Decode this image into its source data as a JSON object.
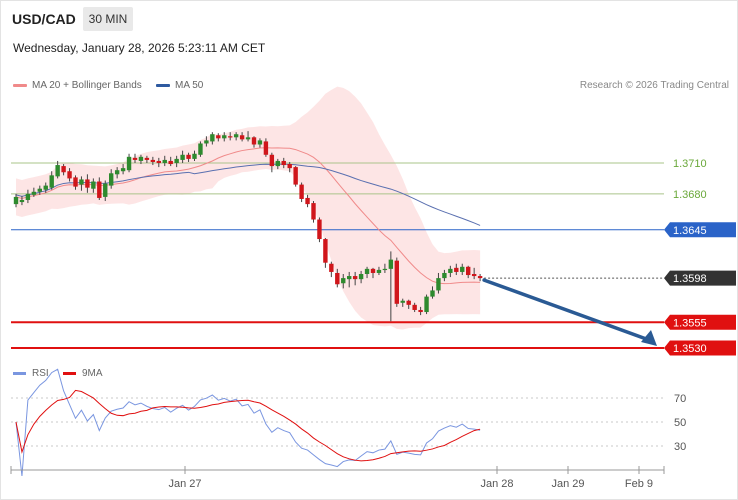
{
  "header": {
    "symbol": "USD/CAD",
    "timeframe": "30 MIN",
    "datetime": "Wednesday, January 28, 2026 5:23:11 AM CET",
    "credit": "Research © 2026 Trading Central"
  },
  "legend": {
    "ma20": "MA 20 + Bollinger Bands",
    "ma50": "MA 50",
    "rsi": "RSI",
    "ma9": "9MA"
  },
  "colors": {
    "bull": "#2e8a2e",
    "bear": "#d0161b",
    "ma20": "#f08a8a",
    "band": "#fde0e0",
    "ma50": "#5a70b0",
    "support": "#e01010",
    "resistance_green": "#aac48a",
    "blue_level": "#2a63c8",
    "current": "#333333",
    "arrow": "#2a5a94",
    "rsi": "#7a96e0",
    "rsi_ma": "#e01010"
  },
  "chart_data": {
    "type": "candlestick",
    "ylim": [
      1.351,
      1.38
    ],
    "x_ticks": [
      "Jan 27",
      "Jan 28",
      "Jan 29",
      "Feb 9"
    ],
    "levels": [
      {
        "value": 1.371,
        "label": "1.3710",
        "kind": "resistance"
      },
      {
        "value": 1.368,
        "label": "1.3680",
        "kind": "resistance"
      },
      {
        "value": 1.3645,
        "label": "1.3645",
        "kind": "pivot"
      },
      {
        "value": 1.3598,
        "label": "1.3598",
        "kind": "current"
      },
      {
        "value": 1.3555,
        "label": "1.3555",
        "kind": "support"
      },
      {
        "value": 1.353,
        "label": "1.3530",
        "kind": "support"
      }
    ],
    "candles": [
      [
        1.3677,
        1.367,
        1.368,
        1.3667
      ],
      [
        1.3674,
        1.3672,
        1.3678,
        1.3669
      ],
      [
        1.368,
        1.3674,
        1.3684,
        1.3671
      ],
      [
        1.3682,
        1.3679,
        1.3686,
        1.3677
      ],
      [
        1.3685,
        1.3682,
        1.3688,
        1.3679
      ],
      [
        1.3688,
        1.3684,
        1.3691,
        1.3681
      ],
      [
        1.3698,
        1.3686,
        1.3702,
        1.3684
      ],
      [
        1.3708,
        1.3697,
        1.3712,
        1.3695
      ],
      [
        1.3701,
        1.3707,
        1.3709,
        1.3698
      ],
      [
        1.3695,
        1.3702,
        1.3705,
        1.3692
      ],
      [
        1.3687,
        1.3696,
        1.3698,
        1.3684
      ],
      [
        1.3694,
        1.3689,
        1.3697,
        1.3683
      ],
      [
        1.3686,
        1.3694,
        1.3699,
        1.3681
      ],
      [
        1.3692,
        1.3685,
        1.3695,
        1.3681
      ],
      [
        1.3676,
        1.3692,
        1.3696,
        1.3674
      ],
      [
        1.369,
        1.3677,
        1.3693,
        1.3673
      ],
      [
        1.37,
        1.3688,
        1.3704,
        1.3685
      ],
      [
        1.3703,
        1.3699,
        1.3706,
        1.3695
      ],
      [
        1.3705,
        1.3702,
        1.3709,
        1.3699
      ],
      [
        1.3716,
        1.3703,
        1.3719,
        1.3701
      ],
      [
        1.3713,
        1.3715,
        1.3719,
        1.371
      ],
      [
        1.3716,
        1.3712,
        1.3718,
        1.3709
      ],
      [
        1.3713,
        1.3715,
        1.3717,
        1.371
      ],
      [
        1.3711,
        1.3713,
        1.3716,
        1.3708
      ],
      [
        1.371,
        1.3712,
        1.3715,
        1.3706
      ],
      [
        1.3713,
        1.371,
        1.3717,
        1.3707
      ],
      [
        1.3709,
        1.3712,
        1.3716,
        1.3707
      ],
      [
        1.3714,
        1.371,
        1.3717,
        1.3706
      ],
      [
        1.3718,
        1.3713,
        1.3722,
        1.371
      ],
      [
        1.3714,
        1.3718,
        1.372,
        1.3711
      ],
      [
        1.3719,
        1.3714,
        1.3722,
        1.3712
      ],
      [
        1.3729,
        1.3718,
        1.3731,
        1.3716
      ],
      [
        1.3732,
        1.3729,
        1.3736,
        1.3726
      ],
      [
        1.3738,
        1.3731,
        1.374,
        1.3728
      ],
      [
        1.3734,
        1.3737,
        1.3739,
        1.3731
      ],
      [
        1.3737,
        1.3734,
        1.374,
        1.3731
      ],
      [
        1.3735,
        1.3736,
        1.374,
        1.3732
      ],
      [
        1.3738,
        1.3735,
        1.374,
        1.3732
      ],
      [
        1.3733,
        1.3737,
        1.374,
        1.3731
      ],
      [
        1.3735,
        1.3733,
        1.3741,
        1.3731
      ],
      [
        1.3728,
        1.3735,
        1.3736,
        1.3725
      ],
      [
        1.3732,
        1.3728,
        1.3734,
        1.3725
      ],
      [
        1.3718,
        1.3731,
        1.3734,
        1.3716
      ],
      [
        1.3707,
        1.3718,
        1.372,
        1.3701
      ],
      [
        1.3712,
        1.3707,
        1.3714,
        1.3704
      ],
      [
        1.3708,
        1.3712,
        1.3715,
        1.3705
      ],
      [
        1.3705,
        1.3709,
        1.3711,
        1.3701
      ],
      [
        1.3689,
        1.3706,
        1.3707,
        1.3687
      ],
      [
        1.3675,
        1.3689,
        1.3691,
        1.3672
      ],
      [
        1.367,
        1.3676,
        1.3679,
        1.3667
      ],
      [
        1.3655,
        1.3671,
        1.3673,
        1.3652
      ],
      [
        1.3636,
        1.3655,
        1.3657,
        1.3633
      ],
      [
        1.3613,
        1.3636,
        1.3637,
        1.3608
      ],
      [
        1.3604,
        1.3612,
        1.3614,
        1.3599
      ],
      [
        1.3592,
        1.3603,
        1.3607,
        1.3589
      ],
      [
        1.3598,
        1.3593,
        1.3602,
        1.3588
      ],
      [
        1.36,
        1.3597,
        1.3604,
        1.3589
      ],
      [
        1.3597,
        1.36,
        1.3604,
        1.3591
      ],
      [
        1.3602,
        1.3597,
        1.3605,
        1.3593
      ],
      [
        1.3607,
        1.3602,
        1.3609,
        1.3598
      ],
      [
        1.3603,
        1.3607,
        1.3608,
        1.3598
      ],
      [
        1.3606,
        1.3603,
        1.3609,
        1.3601
      ],
      [
        1.3607,
        1.3606,
        1.3612,
        1.3603
      ],
      [
        1.3616,
        1.3607,
        1.3624,
        1.3556
      ],
      [
        1.3573,
        1.3615,
        1.3618,
        1.357
      ],
      [
        1.3576,
        1.3574,
        1.3578,
        1.357
      ],
      [
        1.3572,
        1.3576,
        1.3577,
        1.3568
      ],
      [
        1.3567,
        1.3572,
        1.3574,
        1.3565
      ],
      [
        1.3565,
        1.3567,
        1.357,
        1.3562
      ],
      [
        1.358,
        1.3565,
        1.3582,
        1.3563
      ],
      [
        1.3586,
        1.358,
        1.359,
        1.3578
      ],
      [
        1.3598,
        1.3586,
        1.3603,
        1.3583
      ],
      [
        1.3603,
        1.3598,
        1.3606,
        1.3595
      ],
      [
        1.3607,
        1.3603,
        1.361,
        1.3599
      ],
      [
        1.3604,
        1.3608,
        1.3612,
        1.3601
      ],
      [
        1.3609,
        1.3604,
        1.3612,
        1.3601
      ],
      [
        1.3601,
        1.3609,
        1.361,
        1.3598
      ],
      [
        1.36,
        1.3602,
        1.3608,
        1.3597
      ],
      [
        1.3598,
        1.36,
        1.3602,
        1.3595
      ]
    ],
    "rsi": {
      "labels": [
        "70",
        "50",
        "30"
      ],
      "ylim": [
        0,
        100
      ]
    }
  }
}
